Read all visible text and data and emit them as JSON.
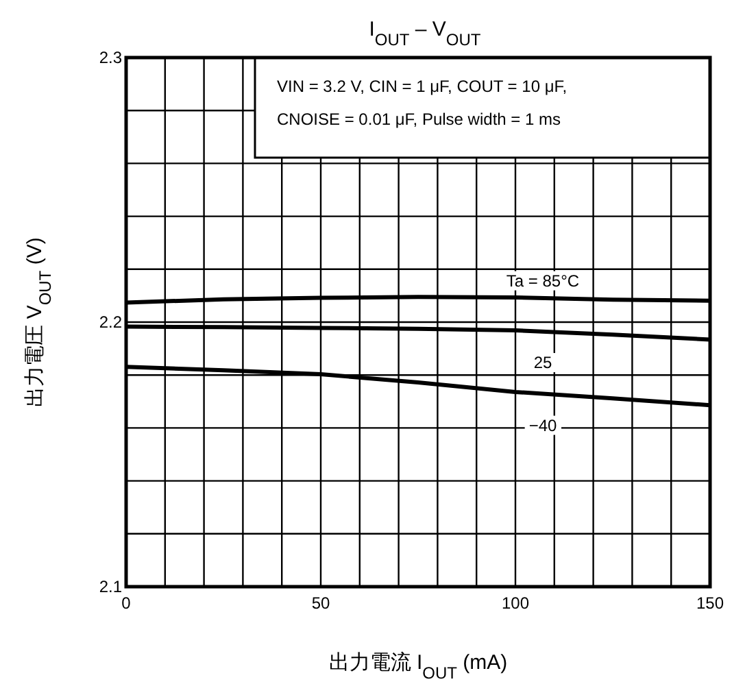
{
  "chart_data": {
    "type": "line",
    "title": "I$_{OUT}$ – V$_{OUT}$",
    "xlabel": "出力電流  I$_{OUT}$  (mA)",
    "ylabel": "出力電圧  V$_{OUT}$  (V)",
    "x": [
      0,
      25,
      50,
      75,
      100,
      125,
      150
    ],
    "series": [
      {
        "color": "#000000",
        "values": [
          2.2074,
          2.2086,
          2.2092,
          2.2095,
          2.2093,
          2.2085,
          2.2081
        ]
      },
      {
        "color": "#000000",
        "values": [
          2.1983,
          2.1981,
          2.1978,
          2.1975,
          2.1969,
          2.1953,
          2.1934
        ]
      },
      {
        "color": "#000000",
        "values": [
          2.1831,
          2.1818,
          2.1803,
          2.1772,
          2.1736,
          2.1712,
          2.1686
        ]
      }
    ],
    "xlim": [
      0,
      150
    ],
    "ylim": [
      2.1,
      2.3
    ],
    "xticks": [
      0,
      {
        "value": 10,
        "label": null
      },
      {
        "value": 20,
        "label": null
      },
      {
        "value": 30,
        "label": null
      },
      {
        "value": 40,
        "label": null
      },
      50,
      {
        "value": 60,
        "label": null
      },
      {
        "value": 70,
        "label": null
      },
      {
        "value": 80,
        "label": null
      },
      {
        "value": 90,
        "label": null
      },
      100,
      {
        "value": 110,
        "label": null
      },
      {
        "value": 120,
        "label": null
      },
      {
        "value": 130,
        "label": null
      },
      {
        "value": 140,
        "label": null
      },
      150
    ],
    "yticks": [
      2.1,
      {
        "value": 2.12,
        "label": null
      },
      {
        "value": 2.14,
        "label": null
      },
      {
        "value": 2.16,
        "label": null
      },
      {
        "value": 2.18,
        "label": null
      },
      2.2,
      {
        "value": 2.22,
        "label": null
      },
      {
        "value": 2.24,
        "label": null
      },
      {
        "value": 2.26,
        "label": null
      },
      {
        "value": 2.28,
        "label": null
      },
      2.3
    ],
    "grid": true,
    "line_style": "solid",
    "marker": "none",
    "annotations": [
      "VIN = 3.2 V, CIN = 1 μF, COUT = 10 μF, CNOISE = 0.01 μF, Pulse width = 1 ms",
      "Ta = 85°C",
      "25",
      "−40"
    ]
  }
}
